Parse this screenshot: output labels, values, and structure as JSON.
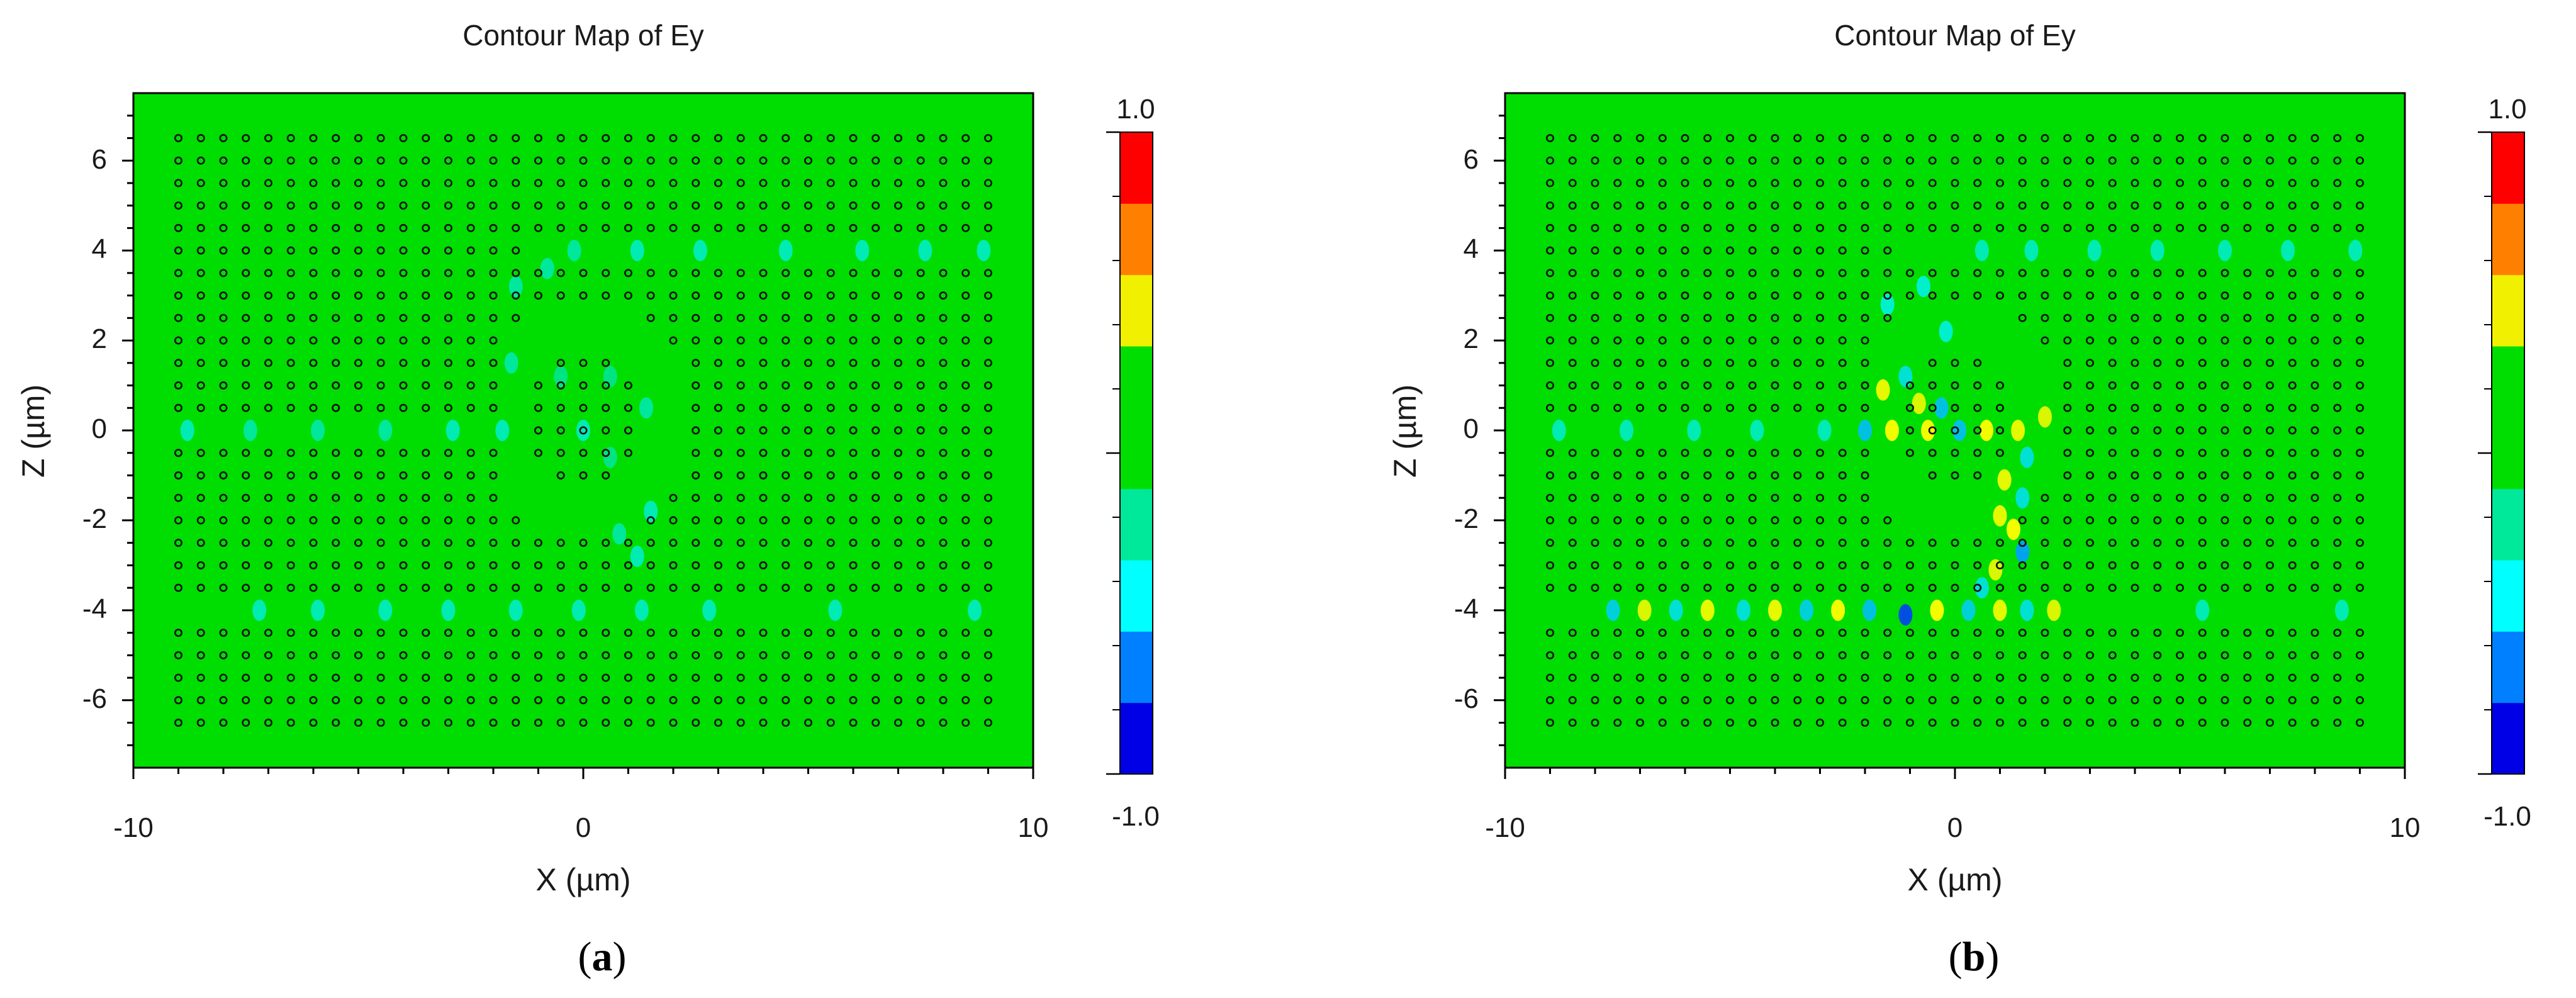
{
  "colors": {
    "background_field": "#00dd00",
    "plot_border": "#000000",
    "hole": "#111111",
    "colorbar": [
      "#0000e6",
      "#0080ff",
      "#00ffff",
      "#00e89a",
      "#00dd00",
      "#00dd00",
      "#f0f000",
      "#ff8000",
      "#ff0000"
    ]
  },
  "chart_data": [
    {
      "type": "heatmap",
      "panel": "(a)",
      "panel_letter": "a",
      "title": "Contour Map of Ey",
      "xlabel": "X (µm)",
      "ylabel": "Z (µm)",
      "xlim": [
        -10,
        10
      ],
      "ylim": [
        -7.5,
        7.5
      ],
      "xticks": [
        "-10",
        "0",
        "10"
      ],
      "yticks": [
        "6",
        "4",
        "2",
        "0",
        "-2",
        "-4",
        "-6"
      ],
      "colorbar": {
        "max": "1.0",
        "min": "-1.0",
        "range": [
          -1.0,
          1.0
        ]
      },
      "field_spots": [
        {
          "x": -8.8,
          "z": 0.0,
          "value": -0.3
        },
        {
          "x": -7.4,
          "z": 0.0,
          "value": -0.25
        },
        {
          "x": -5.9,
          "z": 0.0,
          "value": -0.25
        },
        {
          "x": -4.4,
          "z": 0.0,
          "value": -0.25
        },
        {
          "x": -2.9,
          "z": 0.0,
          "value": -0.3
        },
        {
          "x": -1.8,
          "z": 0.0,
          "value": -0.3
        },
        {
          "x": 0.0,
          "z": 0.0,
          "value": -0.3
        },
        {
          "x": -1.5,
          "z": 3.2,
          "value": -0.25
        },
        {
          "x": -0.8,
          "z": 3.6,
          "value": -0.25
        },
        {
          "x": -0.2,
          "z": 4.0,
          "value": -0.25
        },
        {
          "x": 1.2,
          "z": 4.0,
          "value": -0.3
        },
        {
          "x": 2.6,
          "z": 4.0,
          "value": -0.3
        },
        {
          "x": 4.5,
          "z": 4.0,
          "value": -0.3
        },
        {
          "x": 6.2,
          "z": 4.0,
          "value": -0.3
        },
        {
          "x": 7.6,
          "z": 4.0,
          "value": -0.3
        },
        {
          "x": 8.9,
          "z": 4.0,
          "value": -0.3
        },
        {
          "x": -1.6,
          "z": 1.5,
          "value": -0.25
        },
        {
          "x": -0.5,
          "z": 1.2,
          "value": -0.2
        },
        {
          "x": 0.6,
          "z": 1.2,
          "value": -0.2
        },
        {
          "x": 1.4,
          "z": 0.5,
          "value": -0.25
        },
        {
          "x": 1.5,
          "z": -1.8,
          "value": -0.3
        },
        {
          "x": 0.8,
          "z": -2.3,
          "value": -0.25
        },
        {
          "x": 1.2,
          "z": -2.8,
          "value": -0.3
        },
        {
          "x": 0.6,
          "z": -0.6,
          "value": -0.2
        },
        {
          "x": -7.2,
          "z": -4.0,
          "value": -0.3
        },
        {
          "x": -5.9,
          "z": -4.0,
          "value": -0.3
        },
        {
          "x": -4.4,
          "z": -4.0,
          "value": -0.3
        },
        {
          "x": -3.0,
          "z": -4.0,
          "value": -0.3
        },
        {
          "x": -1.5,
          "z": -4.0,
          "value": -0.3
        },
        {
          "x": -0.1,
          "z": -4.0,
          "value": -0.3
        },
        {
          "x": 1.3,
          "z": -4.0,
          "value": -0.3
        },
        {
          "x": 2.8,
          "z": -4.0,
          "value": -0.3
        },
        {
          "x": 5.6,
          "z": -4.0,
          "value": -0.3
        },
        {
          "x": 8.7,
          "z": -4.0,
          "value": -0.3
        }
      ]
    },
    {
      "type": "heatmap",
      "panel": "(b)",
      "panel_letter": "b",
      "title": "Contour Map of Ey",
      "xlabel": "X (µm)",
      "ylabel": "Z (µm)",
      "xlim": [
        -10,
        10
      ],
      "ylim": [
        -7.5,
        7.5
      ],
      "xticks": [
        "-10",
        "0",
        "10"
      ],
      "yticks": [
        "6",
        "4",
        "2",
        "0",
        "-2",
        "-4",
        "-6"
      ],
      "colorbar": {
        "max": "1.0",
        "min": "-1.0",
        "range": [
          -1.0,
          1.0
        ]
      },
      "field_spots": [
        {
          "x": -8.8,
          "z": 0.0,
          "value": -0.3
        },
        {
          "x": -7.3,
          "z": 0.0,
          "value": -0.3
        },
        {
          "x": -5.8,
          "z": 0.0,
          "value": -0.3
        },
        {
          "x": -4.4,
          "z": 0.0,
          "value": -0.3
        },
        {
          "x": -2.9,
          "z": 0.0,
          "value": -0.3
        },
        {
          "x": 0.6,
          "z": 4.0,
          "value": -0.3
        },
        {
          "x": 1.7,
          "z": 4.0,
          "value": -0.3
        },
        {
          "x": 3.1,
          "z": 4.0,
          "value": -0.3
        },
        {
          "x": 4.5,
          "z": 4.0,
          "value": -0.3
        },
        {
          "x": 6.0,
          "z": 4.0,
          "value": -0.3
        },
        {
          "x": 7.4,
          "z": 4.0,
          "value": -0.3
        },
        {
          "x": 8.9,
          "z": 4.0,
          "value": -0.3
        },
        {
          "x": -0.7,
          "z": 3.2,
          "value": -0.35
        },
        {
          "x": -1.5,
          "z": 2.8,
          "value": -0.35
        },
        {
          "x": -0.2,
          "z": 2.2,
          "value": -0.35
        },
        {
          "x": -1.1,
          "z": 1.2,
          "value": -0.4
        },
        {
          "x": -1.6,
          "z": 0.9,
          "value": 0.5
        },
        {
          "x": -0.8,
          "z": 0.6,
          "value": 0.45
        },
        {
          "x": -0.3,
          "z": 0.5,
          "value": -0.5
        },
        {
          "x": -2.0,
          "z": 0.0,
          "value": -0.5
        },
        {
          "x": -1.4,
          "z": 0.0,
          "value": 0.55
        },
        {
          "x": -0.6,
          "z": 0.0,
          "value": 0.55
        },
        {
          "x": 0.1,
          "z": 0.0,
          "value": -0.5
        },
        {
          "x": 0.7,
          "z": 0.0,
          "value": 0.55
        },
        {
          "x": 1.4,
          "z": 0.0,
          "value": 0.5
        },
        {
          "x": 2.0,
          "z": 0.3,
          "value": 0.45
        },
        {
          "x": 1.6,
          "z": -0.6,
          "value": -0.4
        },
        {
          "x": 1.1,
          "z": -1.1,
          "value": 0.5
        },
        {
          "x": 1.5,
          "z": -1.5,
          "value": -0.4
        },
        {
          "x": 1.0,
          "z": -1.9,
          "value": 0.5
        },
        {
          "x": 1.3,
          "z": -2.2,
          "value": 0.55
        },
        {
          "x": 1.5,
          "z": -2.7,
          "value": -0.6
        },
        {
          "x": 0.9,
          "z": -3.1,
          "value": 0.45
        },
        {
          "x": 0.6,
          "z": -3.5,
          "value": -0.4
        },
        {
          "x": -7.6,
          "z": -4.0,
          "value": -0.45
        },
        {
          "x": -6.9,
          "z": -4.0,
          "value": 0.45
        },
        {
          "x": -6.2,
          "z": -4.0,
          "value": -0.4
        },
        {
          "x": -5.5,
          "z": -4.0,
          "value": 0.5
        },
        {
          "x": -4.7,
          "z": -4.0,
          "value": -0.4
        },
        {
          "x": -4.0,
          "z": -4.0,
          "value": 0.5
        },
        {
          "x": -3.3,
          "z": -4.0,
          "value": -0.45
        },
        {
          "x": -2.6,
          "z": -4.0,
          "value": 0.55
        },
        {
          "x": -1.9,
          "z": -4.0,
          "value": -0.5
        },
        {
          "x": -1.1,
          "z": -4.1,
          "value": -0.85
        },
        {
          "x": -0.4,
          "z": -4.0,
          "value": 0.55
        },
        {
          "x": 0.3,
          "z": -4.0,
          "value": -0.45
        },
        {
          "x": 1.0,
          "z": -4.0,
          "value": 0.5
        },
        {
          "x": 1.6,
          "z": -4.0,
          "value": -0.4
        },
        {
          "x": 2.2,
          "z": -4.0,
          "value": 0.45
        },
        {
          "x": 5.5,
          "z": -4.0,
          "value": -0.3
        },
        {
          "x": 8.6,
          "z": -4.0,
          "value": -0.3
        }
      ]
    }
  ]
}
